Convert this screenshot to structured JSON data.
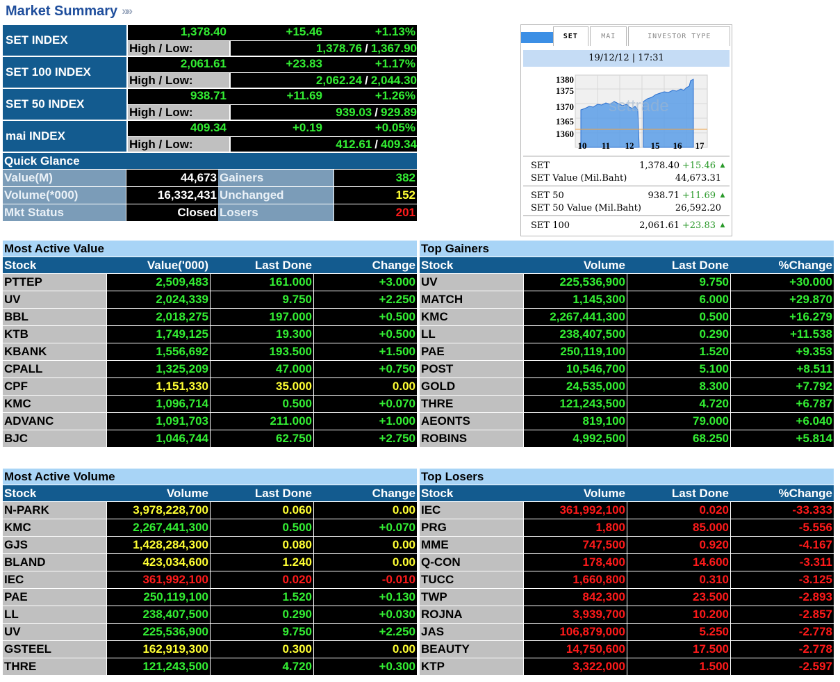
{
  "header": {
    "title": "Market Summary",
    "arrows": "»»"
  },
  "indices": [
    {
      "name": "SET INDEX",
      "last": "1,378.40",
      "change": "+15.46",
      "pct": "+1.13%",
      "hl_label": "High / Low:",
      "high": "1,378.76",
      "low": "1,367.90"
    },
    {
      "name": "SET 100 INDEX",
      "last": "2,061.61",
      "change": "+23.83",
      "pct": "+1.17%",
      "hl_label": "High / Low:",
      "high": "2,062.24",
      "low": "2,044.30"
    },
    {
      "name": "SET 50 INDEX",
      "last": "938.71",
      "change": "+11.69",
      "pct": "+1.26%",
      "hl_label": "High / Low:",
      "high": "939.03",
      "low": "929.89"
    },
    {
      "name": "mai INDEX",
      "last": "409.34",
      "change": "+0.19",
      "pct": "+0.05%",
      "hl_label": "High / Low:",
      "high": "412.61",
      "low": "409.34"
    }
  ],
  "quick_glance": {
    "title": "Quick Glance",
    "rows": [
      {
        "l1": "Value(M)",
        "v1": "44,673",
        "l2": "Gainers",
        "v2": "382",
        "c2": "green"
      },
      {
        "l1": "Volume(*000)",
        "v1": "16,332,431",
        "l2": "Unchanged",
        "v2": "152",
        "c2": "yellow"
      },
      {
        "l1": "Mkt Status",
        "v1": "Closed",
        "l2": "Losers",
        "v2": "201",
        "c2": "red"
      }
    ]
  },
  "widget": {
    "tabs": [
      "SET",
      "MAI",
      "INVESTOR TYPE"
    ],
    "datetime": "19/12/12 | 17:31",
    "chart": {
      "y_ticks": [
        "1380",
        "1375",
        "1370",
        "1365",
        "1360"
      ],
      "x_ticks": [
        "10",
        "11",
        "12",
        "15",
        "16",
        "17"
      ],
      "watermark": "settrade"
    },
    "rows": [
      [
        {
          "name": "SET",
          "value": "1,378.40",
          "change": "+15.46"
        },
        {
          "name": "SET Value (Mil.Baht)",
          "value": "44,673.31"
        }
      ],
      [
        {
          "name": "SET 50",
          "value": "938.71",
          "change": "+11.69"
        },
        {
          "name": "SET 50 Value (Mil.Baht)",
          "value": "26,592.20"
        }
      ],
      [
        {
          "name": "SET 100",
          "value": "2,061.61",
          "change": "+23.83"
        }
      ]
    ]
  },
  "most_active_value": {
    "title": "Most Active Value",
    "headers": [
      "Stock",
      "Value('000)",
      "Last Done",
      "Change"
    ],
    "rows": [
      {
        "c": [
          "PTTEP",
          "2,509,483",
          "161.000",
          "+3.000"
        ],
        "color": "green"
      },
      {
        "c": [
          "UV",
          "2,024,339",
          "9.750",
          "+2.250"
        ],
        "color": "green"
      },
      {
        "c": [
          "BBL",
          "2,018,275",
          "197.000",
          "+0.500"
        ],
        "color": "green"
      },
      {
        "c": [
          "KTB",
          "1,749,125",
          "19.300",
          "+0.500"
        ],
        "color": "green"
      },
      {
        "c": [
          "KBANK",
          "1,556,692",
          "193.500",
          "+1.500"
        ],
        "color": "green"
      },
      {
        "c": [
          "CPALL",
          "1,325,209",
          "47.000",
          "+0.750"
        ],
        "color": "green"
      },
      {
        "c": [
          "CPF",
          "1,151,330",
          "35.000",
          "0.00"
        ],
        "color": "yellow"
      },
      {
        "c": [
          "KMC",
          "1,096,714",
          "0.500",
          "+0.070"
        ],
        "color": "green"
      },
      {
        "c": [
          "ADVANC",
          "1,091,703",
          "211.000",
          "+1.000"
        ],
        "color": "green"
      },
      {
        "c": [
          "BJC",
          "1,046,744",
          "62.750",
          "+2.750"
        ],
        "color": "green"
      }
    ]
  },
  "top_gainers": {
    "title": "Top Gainers",
    "headers": [
      "Stock",
      "Volume",
      "Last Done",
      "%Change"
    ],
    "rows": [
      {
        "c": [
          "UV",
          "225,536,900",
          "9.750",
          "+30.000"
        ],
        "color": "green"
      },
      {
        "c": [
          "MATCH",
          "1,145,300",
          "6.000",
          "+29.870"
        ],
        "color": "green"
      },
      {
        "c": [
          "KMC",
          "2,267,441,300",
          "0.500",
          "+16.279"
        ],
        "color": "green"
      },
      {
        "c": [
          "LL",
          "238,407,500",
          "0.290",
          "+11.538"
        ],
        "color": "green"
      },
      {
        "c": [
          "PAE",
          "250,119,100",
          "1.520",
          "+9.353"
        ],
        "color": "green"
      },
      {
        "c": [
          "POST",
          "10,546,700",
          "5.100",
          "+8.511"
        ],
        "color": "green"
      },
      {
        "c": [
          "GOLD",
          "24,535,000",
          "8.300",
          "+7.792"
        ],
        "color": "green"
      },
      {
        "c": [
          "THRE",
          "121,243,500",
          "4.720",
          "+6.787"
        ],
        "color": "green"
      },
      {
        "c": [
          "AEONTS",
          "819,100",
          "79.000",
          "+6.040"
        ],
        "color": "green"
      },
      {
        "c": [
          "ROBINS",
          "4,992,500",
          "68.250",
          "+5.814"
        ],
        "color": "green"
      }
    ]
  },
  "most_active_volume": {
    "title": "Most Active Volume",
    "headers": [
      "Stock",
      "Volume",
      "Last Done",
      "Change"
    ],
    "rows": [
      {
        "c": [
          "N-PARK",
          "3,978,228,700",
          "0.060",
          "0.00"
        ],
        "color": "yellow"
      },
      {
        "c": [
          "KMC",
          "2,267,441,300",
          "0.500",
          "+0.070"
        ],
        "color": "green"
      },
      {
        "c": [
          "GJS",
          "1,428,284,300",
          "0.080",
          "0.00"
        ],
        "color": "yellow"
      },
      {
        "c": [
          "BLAND",
          "423,034,600",
          "1.240",
          "0.00"
        ],
        "color": "yellow"
      },
      {
        "c": [
          "IEC",
          "361,992,100",
          "0.020",
          "-0.010"
        ],
        "color": "red"
      },
      {
        "c": [
          "PAE",
          "250,119,100",
          "1.520",
          "+0.130"
        ],
        "color": "green"
      },
      {
        "c": [
          "LL",
          "238,407,500",
          "0.290",
          "+0.030"
        ],
        "color": "green"
      },
      {
        "c": [
          "UV",
          "225,536,900",
          "9.750",
          "+2.250"
        ],
        "color": "green"
      },
      {
        "c": [
          "GSTEEL",
          "162,919,300",
          "0.300",
          "0.00"
        ],
        "color": "yellow"
      },
      {
        "c": [
          "THRE",
          "121,243,500",
          "4.720",
          "+0.300"
        ],
        "color": "green"
      }
    ]
  },
  "top_losers": {
    "title": "Top Losers",
    "headers": [
      "Stock",
      "Volume",
      "Last Done",
      "%Change"
    ],
    "rows": [
      {
        "c": [
          "IEC",
          "361,992,100",
          "0.020",
          "-33.333"
        ],
        "color": "red"
      },
      {
        "c": [
          "PRG",
          "1,800",
          "85.000",
          "-5.556"
        ],
        "color": "red"
      },
      {
        "c": [
          "MME",
          "747,500",
          "0.920",
          "-4.167"
        ],
        "color": "red"
      },
      {
        "c": [
          "Q-CON",
          "178,400",
          "14.600",
          "-3.311"
        ],
        "color": "red"
      },
      {
        "c": [
          "TUCC",
          "1,660,800",
          "0.310",
          "-3.125"
        ],
        "color": "red"
      },
      {
        "c": [
          "TWP",
          "842,300",
          "23.500",
          "-2.893"
        ],
        "color": "red"
      },
      {
        "c": [
          "ROJNA",
          "3,939,700",
          "10.200",
          "-2.857"
        ],
        "color": "red"
      },
      {
        "c": [
          "JAS",
          "106,879,000",
          "5.250",
          "-2.778"
        ],
        "color": "red"
      },
      {
        "c": [
          "BEAUTY",
          "14,750,600",
          "17.500",
          "-2.778"
        ],
        "color": "red"
      },
      {
        "c": [
          "KTP",
          "3,322,000",
          "1.500",
          "-2.597"
        ],
        "color": "red"
      }
    ]
  }
}
